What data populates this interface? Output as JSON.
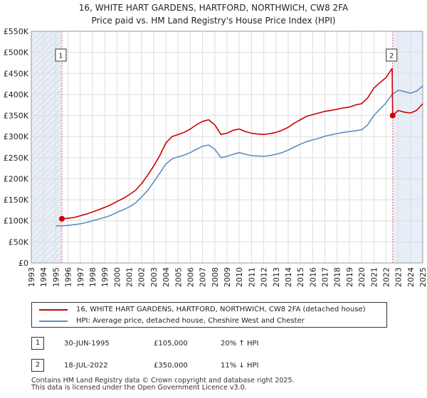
{
  "title": {
    "line1": "16, WHITE HART GARDENS, HARTFORD, NORTHWICH, CW8 2FA",
    "line2": "Price paid vs. HM Land Registry's House Price Index (HPI)"
  },
  "colors": {
    "property": "#cc0000",
    "hpi": "#5b8ec8",
    "shade": "#e8eef7",
    "grid": "#dddddd",
    "marker_line": "#e06666"
  },
  "chart_data": {
    "type": "line",
    "title": "16, WHITE HART GARDENS, HARTFORD, NORTHWICH, CW8 2FA — Price paid vs. HM Land Registry's House Price Index (HPI)",
    "xlabel": "",
    "ylabel": "",
    "xlim": [
      1993,
      2025
    ],
    "ylim": [
      0,
      550000
    ],
    "yticks": [
      0,
      50000,
      100000,
      150000,
      200000,
      250000,
      300000,
      350000,
      400000,
      450000,
      500000,
      550000
    ],
    "ytick_labels": [
      "£0",
      "£50K",
      "£100K",
      "£150K",
      "£200K",
      "£250K",
      "£300K",
      "£350K",
      "£400K",
      "£450K",
      "£500K",
      "£550K"
    ],
    "xticks": [
      1993,
      1994,
      1995,
      1996,
      1997,
      1998,
      1999,
      2000,
      2001,
      2002,
      2003,
      2004,
      2005,
      2006,
      2007,
      2008,
      2009,
      2010,
      2011,
      2012,
      2013,
      2014,
      2015,
      2016,
      2017,
      2018,
      2019,
      2020,
      2021,
      2022,
      2023,
      2024,
      2025
    ],
    "grid": true,
    "shaded_ranges": [
      [
        1993,
        1995.5
      ],
      [
        2022.54,
        2025
      ]
    ],
    "series": [
      {
        "name": "16, WHITE HART GARDENS, HARTFORD, NORTHWICH, CW8 2FA (detached house)",
        "x": [
          1995.5,
          1996.0,
          1996.5,
          1997.0,
          1997.5,
          1998.0,
          1998.5,
          1999.0,
          1999.5,
          2000.0,
          2000.5,
          2001.0,
          2001.5,
          2002.0,
          2002.5,
          2003.0,
          2003.5,
          2004.0,
          2004.5,
          2005.0,
          2005.5,
          2006.0,
          2006.5,
          2007.0,
          2007.5,
          2008.0,
          2008.5,
          2009.0,
          2009.5,
          2010.0,
          2010.5,
          2011.0,
          2011.5,
          2012.0,
          2012.5,
          2013.0,
          2013.5,
          2014.0,
          2014.5,
          2015.0,
          2015.5,
          2016.0,
          2016.5,
          2017.0,
          2017.5,
          2018.0,
          2018.5,
          2019.0,
          2019.5,
          2020.0,
          2020.5,
          2021.0,
          2021.5,
          2022.0,
          2022.5,
          2022.54,
          2023.0,
          2023.5,
          2024.0,
          2024.5,
          2025.0
        ],
        "values": [
          105000,
          106000,
          108000,
          112000,
          116000,
          121000,
          126000,
          132000,
          138000,
          146000,
          153000,
          162000,
          172000,
          188000,
          208000,
          230000,
          255000,
          285000,
          300000,
          305000,
          310000,
          318000,
          328000,
          336000,
          340000,
          328000,
          305000,
          308000,
          315000,
          318000,
          312000,
          308000,
          306000,
          305000,
          307000,
          310000,
          315000,
          322000,
          332000,
          340000,
          348000,
          352000,
          356000,
          360000,
          362000,
          365000,
          368000,
          370000,
          375000,
          378000,
          392000,
          415000,
          428000,
          440000,
          462000,
          350000,
          362000,
          358000,
          356000,
          362000,
          378000
        ]
      },
      {
        "name": "HPI: Average price, detached house, Cheshire West and Chester",
        "x": [
          1995.0,
          1995.5,
          1996.0,
          1996.5,
          1997.0,
          1997.5,
          1998.0,
          1998.5,
          1999.0,
          1999.5,
          2000.0,
          2000.5,
          2001.0,
          2001.5,
          2002.0,
          2002.5,
          2003.0,
          2003.5,
          2004.0,
          2004.5,
          2005.0,
          2005.5,
          2006.0,
          2006.5,
          2007.0,
          2007.5,
          2008.0,
          2008.5,
          2009.0,
          2009.5,
          2010.0,
          2010.5,
          2011.0,
          2011.5,
          2012.0,
          2012.5,
          2013.0,
          2013.5,
          2014.0,
          2014.5,
          2015.0,
          2015.5,
          2016.0,
          2016.5,
          2017.0,
          2017.5,
          2018.0,
          2018.5,
          2019.0,
          2019.5,
          2020.0,
          2020.5,
          2021.0,
          2021.5,
          2022.0,
          2022.5,
          2023.0,
          2023.5,
          2024.0,
          2024.5,
          2025.0
        ],
        "values": [
          88000,
          88000,
          89000,
          91000,
          93000,
          96000,
          100000,
          104000,
          108000,
          113000,
          120000,
          126000,
          133000,
          142000,
          156000,
          172000,
          192000,
          213000,
          235000,
          247000,
          252000,
          256000,
          262000,
          270000,
          277000,
          280000,
          270000,
          250000,
          253000,
          258000,
          262000,
          258000,
          255000,
          254000,
          253000,
          255000,
          258000,
          262000,
          268000,
          275000,
          282000,
          288000,
          292000,
          296000,
          301000,
          304000,
          307000,
          310000,
          312000,
          314000,
          316000,
          328000,
          350000,
          365000,
          380000,
          400000,
          410000,
          407000,
          403000,
          408000,
          420000
        ]
      }
    ],
    "annotations": [
      {
        "label": "1",
        "x": 1995.5,
        "y": 105000
      },
      {
        "label": "2",
        "x": 2022.54,
        "y": 350000
      }
    ]
  },
  "legend": {
    "property_label": "16, WHITE HART GARDENS, HARTFORD, NORTHWICH, CW8 2FA (detached house)",
    "hpi_label": "HPI: Average price, detached house, Cheshire West and Chester"
  },
  "transactions": [
    {
      "num": "1",
      "date": "30-JUN-1995",
      "price": "£105,000",
      "hpi": "20% ↑ HPI"
    },
    {
      "num": "2",
      "date": "18-JUL-2022",
      "price": "£350,000",
      "hpi": "11% ↓ HPI"
    }
  ],
  "footer": {
    "line1": "Contains HM Land Registry data © Crown copyright and database right 2025.",
    "line2": "This data is licensed under the Open Government Licence v3.0."
  }
}
